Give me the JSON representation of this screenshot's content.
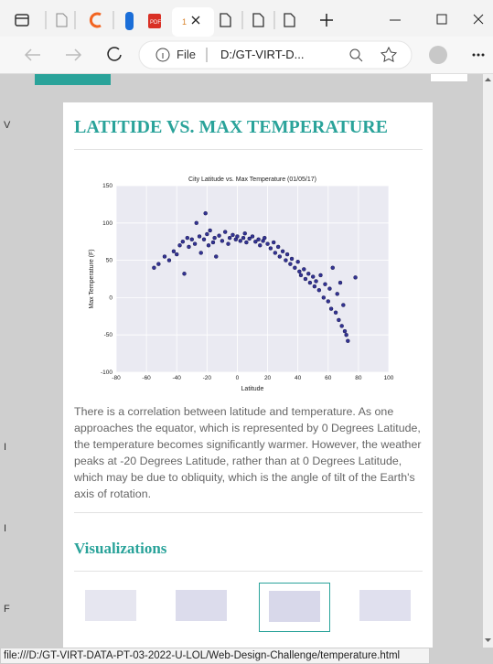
{
  "browser": {
    "tab_title": "1",
    "address_scheme": "File",
    "address": "D:/GT-VIRT-D...",
    "status_url": "file:///D:/GT-VIRT-DATA-PT-03-2022-U-LOL/Web-Design-Challenge/temperature.html"
  },
  "page": {
    "edge_letters": [
      "V",
      "I",
      "I",
      "F"
    ],
    "heading": "LATITIDE VS. MAX TEMPERATURE",
    "chart_data": {
      "type": "scatter",
      "title": "City Latitude vs. Max Temperature (01/05/17)",
      "x_label": "Latitude",
      "y_label": "Max Temperature (F)",
      "xlim": [
        -80,
        100
      ],
      "xticks": [
        -80,
        -60,
        -40,
        -20,
        0,
        20,
        40,
        60,
        80,
        100
      ],
      "ylim": [
        -100,
        150
      ],
      "yticks": [
        -100,
        -50,
        0,
        50,
        100,
        150
      ],
      "grid": true,
      "color": "#1f1f8a",
      "x": [
        -55,
        -52,
        -48,
        -45,
        -42,
        -40,
        -38,
        -36,
        -35,
        -33,
        -32,
        -30,
        -28,
        -27,
        -25,
        -24,
        -22,
        -21,
        -20,
        -19,
        -18,
        -16,
        -15,
        -14,
        -12,
        -10,
        -8,
        -6,
        -5,
        -3,
        -1,
        0,
        2,
        4,
        5,
        6,
        8,
        10,
        12,
        14,
        15,
        17,
        18,
        20,
        22,
        24,
        25,
        27,
        28,
        30,
        32,
        33,
        35,
        36,
        38,
        40,
        41,
        42,
        44,
        45,
        47,
        48,
        50,
        51,
        52,
        54,
        55,
        57,
        58,
        60,
        61,
        62,
        63,
        65,
        66,
        67,
        68,
        69,
        70,
        71,
        72,
        73,
        78
      ],
      "y": [
        40,
        45,
        55,
        50,
        62,
        58,
        70,
        75,
        32,
        80,
        68,
        78,
        72,
        100,
        82,
        60,
        78,
        113,
        85,
        70,
        90,
        74,
        80,
        55,
        83,
        76,
        88,
        72,
        80,
        84,
        78,
        82,
        76,
        80,
        86,
        74,
        79,
        82,
        75,
        78,
        70,
        76,
        80,
        72,
        66,
        74,
        60,
        68,
        55,
        62,
        50,
        58,
        45,
        52,
        40,
        48,
        35,
        30,
        38,
        25,
        32,
        20,
        28,
        15,
        22,
        10,
        30,
        0,
        18,
        -5,
        12,
        -15,
        40,
        -20,
        5,
        -30,
        20,
        -38,
        -10,
        -45,
        -50,
        -58,
        27
      ]
    },
    "description": "There is a correlation between latitude and temperature. As one approaches the equator, which is represented by 0 Degrees Latitude, the temperature becomes significantly warmer. However, the weather peaks at -20 Degrees Latitude, rather than at 0 Degrees Latitude, which may be due to obliquity, which is the angle of tilt of the Earth's axis of rotation.",
    "section_heading": "Visualizations"
  }
}
